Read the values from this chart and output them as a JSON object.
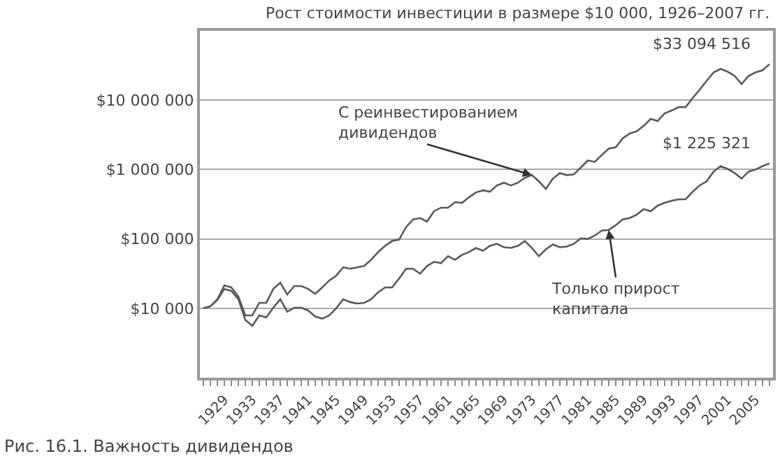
{
  "chart_data": {
    "type": "line",
    "title": "Рост стоимости инвестиции в размере $10 000, 1926–2007 гг.",
    "x": [
      1926,
      1927,
      1928,
      1929,
      1930,
      1931,
      1932,
      1933,
      1934,
      1935,
      1936,
      1937,
      1938,
      1939,
      1940,
      1941,
      1942,
      1943,
      1944,
      1945,
      1946,
      1947,
      1948,
      1949,
      1950,
      1951,
      1952,
      1953,
      1954,
      1955,
      1956,
      1957,
      1958,
      1959,
      1960,
      1961,
      1962,
      1963,
      1964,
      1965,
      1966,
      1967,
      1968,
      1969,
      1970,
      1971,
      1972,
      1973,
      1974,
      1975,
      1976,
      1977,
      1978,
      1979,
      1980,
      1981,
      1982,
      1983,
      1984,
      1985,
      1986,
      1987,
      1988,
      1989,
      1990,
      1991,
      1992,
      1993,
      1994,
      1995,
      1996,
      1997,
      1998,
      1999,
      2000,
      2001,
      2002,
      2003,
      2004,
      2005,
      2006,
      2007
    ],
    "series": [
      {
        "color": "#5a5a5a",
        "values": [
          10000,
          10700,
          13500,
          21400,
          20000,
          14800,
          7900,
          7900,
          12000,
          12000,
          19000,
          23400,
          15800,
          20900,
          20900,
          19000,
          16200,
          20000,
          25100,
          29500,
          38900,
          37200,
          38900,
          40700,
          50100,
          64600,
          79400,
          93300,
          97700,
          148000,
          191000,
          200000,
          178000,
          251000,
          282000,
          282000,
          339000,
          331000,
          398000,
          468000,
          501000,
          479000,
          589000,
          646000,
          589000,
          646000,
          759000,
          832000,
          676000,
          525000,
          741000,
          891000,
          832000,
          851000,
          1070000,
          1350000,
          1290000,
          1620000,
          2000000,
          2090000,
          2820000,
          3310000,
          3550000,
          4270000,
          5370000,
          5010000,
          6460000,
          7080000,
          7940000,
          7940000,
          10700000,
          14100000,
          19000000,
          25100000,
          28200000,
          25700000,
          22400000,
          17000000,
          22400000,
          25100000,
          26900000,
          33094516
        ]
      },
      {
        "color": "#5a5a5a",
        "values": [
          10000,
          10700,
          13200,
          19000,
          17800,
          13500,
          6800,
          5600,
          7900,
          7400,
          10200,
          13500,
          8900,
          10200,
          10200,
          9300,
          7600,
          7100,
          7900,
          10000,
          13500,
          12300,
          11700,
          12000,
          13500,
          17000,
          20000,
          20000,
          26900,
          37200,
          37200,
          31600,
          40700,
          46800,
          44700,
          56200,
          50100,
          58900,
          64600,
          74100,
          67600,
          79400,
          85100,
          75900,
          74100,
          79400,
          93300,
          74100,
          56200,
          70800,
          83200,
          75900,
          77600,
          85100,
          102000,
          100000,
          112000,
          132000,
          135000,
          158000,
          191000,
          200000,
          224000,
          269000,
          251000,
          302000,
          331000,
          355000,
          372000,
          372000,
          479000,
          589000,
          676000,
          933000,
          1120000,
          1020000,
          891000,
          741000,
          933000,
          1000000,
          1120000,
          1225321
        ]
      }
    ],
    "log": "y",
    "ylim": [
      1000,
      100000000
    ],
    "yticks": [
      {
        "value": 1000,
        "label": null
      },
      {
        "value": 10000,
        "label": "$10 000"
      },
      {
        "value": 100000,
        "label": "$100 000"
      },
      {
        "value": 1000000,
        "label": "$1 000 000"
      },
      {
        "value": 10000000,
        "label": "$10 000 000"
      },
      {
        "value": 100000000,
        "label": null
      }
    ],
    "xlim": [
      1925.5,
      2007.5
    ],
    "xticks": [
      {
        "value": 1926,
        "label": null
      },
      {
        "value": 1927,
        "label": null
      },
      {
        "value": 1928,
        "label": null
      },
      1929,
      {
        "value": 1930,
        "label": null
      },
      {
        "value": 1931,
        "label": null
      },
      {
        "value": 1932,
        "label": null
      },
      1933,
      {
        "value": 1934,
        "label": null
      },
      {
        "value": 1935,
        "label": null
      },
      {
        "value": 1936,
        "label": null
      },
      1937,
      {
        "value": 1938,
        "label": null
      },
      {
        "value": 1939,
        "label": null
      },
      {
        "value": 1940,
        "label": null
      },
      1941,
      {
        "value": 1942,
        "label": null
      },
      {
        "value": 1943,
        "label": null
      },
      {
        "value": 1944,
        "label": null
      },
      1945,
      {
        "value": 1946,
        "label": null
      },
      {
        "value": 1947,
        "label": null
      },
      {
        "value": 1948,
        "label": null
      },
      1949,
      {
        "value": 1950,
        "label": null
      },
      {
        "value": 1951,
        "label": null
      },
      {
        "value": 1952,
        "label": null
      },
      1953,
      {
        "value": 1954,
        "label": null
      },
      {
        "value": 1955,
        "label": null
      },
      {
        "value": 1956,
        "label": null
      },
      1957,
      {
        "value": 1958,
        "label": null
      },
      {
        "value": 1959,
        "label": null
      },
      {
        "value": 1960,
        "label": null
      },
      1961,
      {
        "value": 1962,
        "label": null
      },
      {
        "value": 1963,
        "label": null
      },
      {
        "value": 1964,
        "label": null
      },
      1965,
      {
        "value": 1966,
        "label": null
      },
      {
        "value": 1967,
        "label": null
      },
      {
        "value": 1968,
        "label": null
      },
      1969,
      {
        "value": 1970,
        "label": null
      },
      {
        "value": 1971,
        "label": null
      },
      {
        "value": 1972,
        "label": null
      },
      1973,
      {
        "value": 1974,
        "label": null
      },
      {
        "value": 1975,
        "label": null
      },
      {
        "value": 1976,
        "label": null
      },
      1977,
      {
        "value": 1978,
        "label": null
      },
      {
        "value": 1979,
        "label": null
      },
      {
        "value": 1980,
        "label": null
      },
      1981,
      {
        "value": 1982,
        "label": null
      },
      {
        "value": 1983,
        "label": null
      },
      {
        "value": 1984,
        "label": null
      },
      1985,
      {
        "value": 1986,
        "label": null
      },
      {
        "value": 1987,
        "label": null
      },
      {
        "value": 1988,
        "label": null
      },
      1989,
      {
        "value": 1990,
        "label": null
      },
      {
        "value": 1991,
        "label": null
      },
      {
        "value": 1992,
        "label": null
      },
      1993,
      {
        "value": 1994,
        "label": null
      },
      {
        "value": 1995,
        "label": null
      },
      {
        "value": 1996,
        "label": null
      },
      1997,
      {
        "value": 1998,
        "label": null
      },
      {
        "value": 1999,
        "label": null
      },
      {
        "value": 2000,
        "label": null
      },
      2001,
      {
        "value": 2002,
        "label": null
      },
      {
        "value": 2003,
        "label": null
      },
      {
        "value": 2004,
        "label": null
      },
      2005,
      {
        "value": 2006,
        "label": null
      },
      {
        "value": 2007,
        "label": null
      }
    ],
    "grid": "y",
    "annotations": [
      {
        "text": "С реинвестированием\nдивидендов",
        "x": 1973,
        "y": 832000
      },
      {
        "text": "Только прирост\nкапитала",
        "x": 1984,
        "y": 135000
      },
      {
        "text": "$33 094 516",
        "x": 2007,
        "y": 33094516
      },
      {
        "text": "$1 225 321",
        "x": 2007,
        "y": 1225321
      },
      "Рис. 16.1. Важность дивидендов"
    ]
  }
}
